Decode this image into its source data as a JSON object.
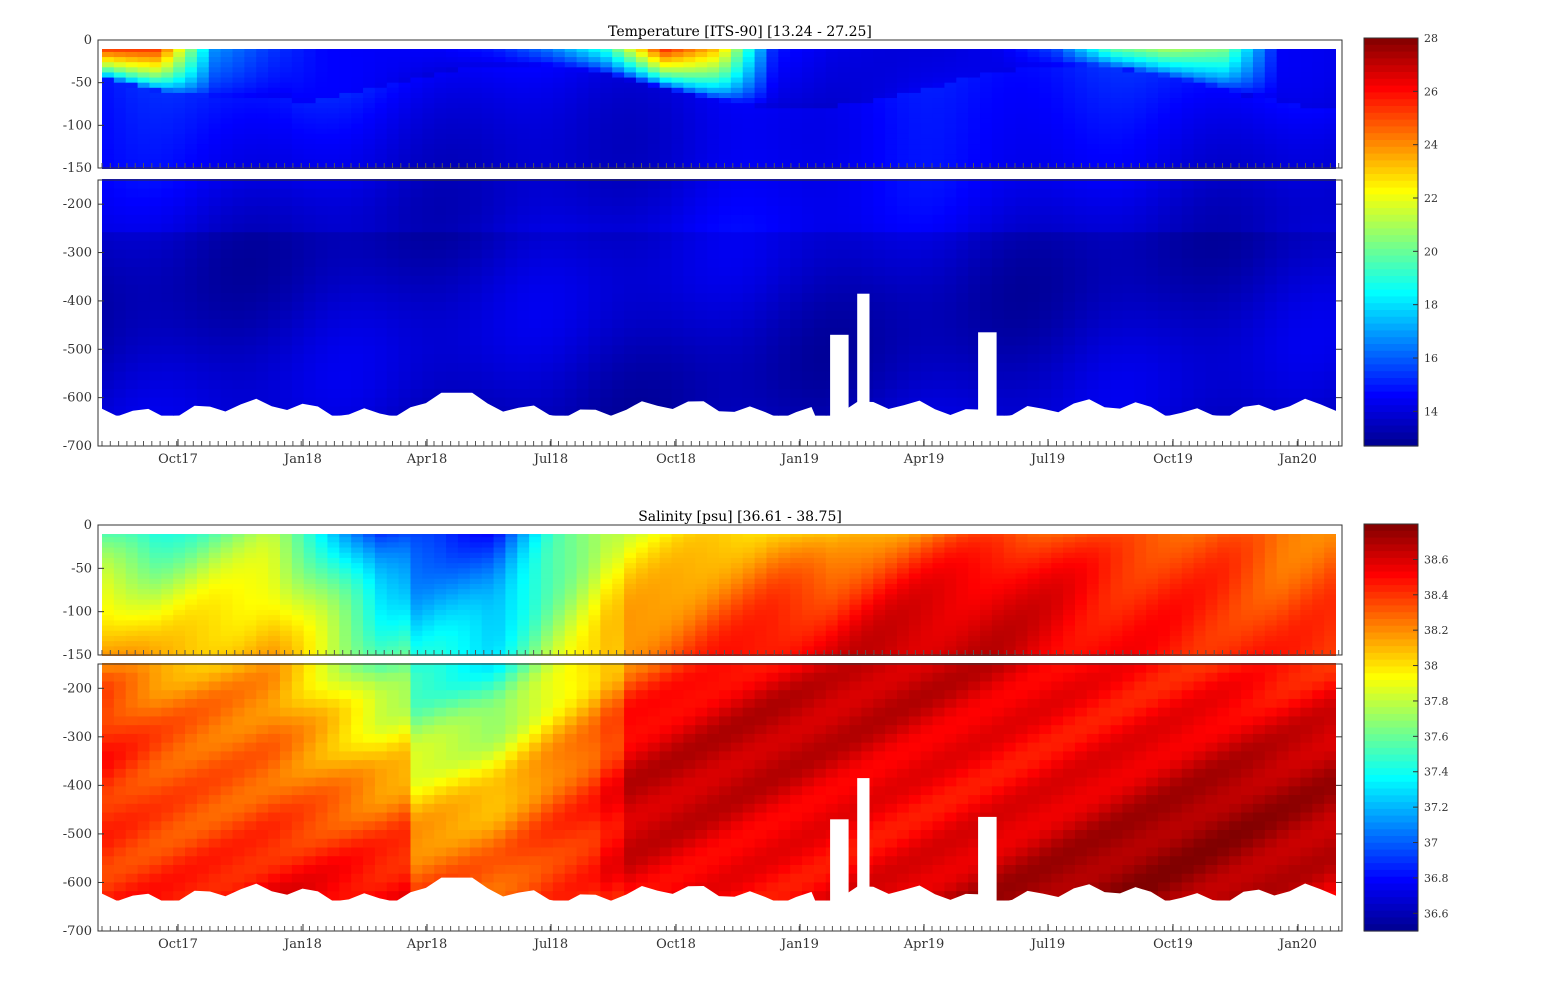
{
  "colors": {
    "jet": [
      "#00008f",
      "#0000ff",
      "#0080ff",
      "#00ffff",
      "#80ff80",
      "#ffff00",
      "#ff8000",
      "#ff0000",
      "#800000"
    ],
    "axis": "#333333",
    "contour": "#9a9a9a"
  },
  "x_tick_labels": [
    "Oct17",
    "Jan18",
    "Apr18",
    "Jul18",
    "Oct18",
    "Jan19",
    "Apr19",
    "Jul19",
    "Oct19",
    "Jan20"
  ],
  "chart_data": [
    {
      "type": "heatmap",
      "title": "Temperature [ITS-90]   [13.24 - 27.25]",
      "xlabel": "",
      "ylabel": "",
      "x": [
        "Oct17",
        "Jan18",
        "Apr18",
        "Jul18",
        "Oct18",
        "Jan19",
        "Apr19",
        "Jul19",
        "Oct19",
        "Jan20"
      ],
      "ylim": [
        -700,
        0
      ],
      "upper_panel": {
        "ylim": [
          -150,
          0
        ],
        "y_tick_labels": [
          "0",
          "-50",
          "-100",
          "-150"
        ]
      },
      "lower_panel": {
        "ylim": [
          -700,
          -150
        ],
        "y_tick_labels": [
          "-200",
          "-300",
          "-400",
          "-500",
          "-600",
          "-700"
        ]
      },
      "value_range": [
        13.24,
        27.25
      ],
      "colorbar": {
        "min": 12.7,
        "max": 28,
        "tick_labels": [
          "28",
          "26",
          "24",
          "22",
          "20",
          "18",
          "16",
          "14"
        ]
      },
      "surface_values": [
        27,
        26.5,
        17,
        15.5,
        14.6,
        14.5,
        14.6,
        15.2,
        17,
        20,
        27,
        24,
        15,
        14.3,
        14.0,
        14.0,
        14.4,
        16,
        21,
        22,
        21,
        14.5,
        14.3
      ],
      "summary": {
        "surface_layer_max": 27.25,
        "deep_layer_typical": [
          13.5,
          14.5
        ]
      },
      "colormap": "jet"
    },
    {
      "type": "heatmap",
      "title": "Salinity [psu]   [36.61 - 38.75]",
      "xlabel": "",
      "ylabel": "",
      "x": [
        "Oct17",
        "Jan18",
        "Apr18",
        "Jul18",
        "Oct18",
        "Jan19",
        "Apr19",
        "Jul19",
        "Oct19",
        "Jan20"
      ],
      "ylim": [
        -700,
        0
      ],
      "upper_panel": {
        "ylim": [
          -150,
          0
        ],
        "y_tick_labels": [
          "0",
          "-50",
          "-100",
          "-150"
        ]
      },
      "lower_panel": {
        "ylim": [
          -700,
          -150
        ],
        "y_tick_labels": [
          "-200",
          "-300",
          "-400",
          "-500",
          "-600",
          "-700"
        ]
      },
      "value_range": [
        36.61,
        38.75
      ],
      "colorbar": {
        "min": 36.5,
        "max": 38.8,
        "tick_labels": [
          "38.6",
          "38.4",
          "38.2",
          "38",
          "37.8",
          "37.6",
          "37.4",
          "37.2",
          "37",
          "36.8",
          "36.6"
        ]
      },
      "surface_values": [
        37.45,
        37.35,
        37.55,
        37.7,
        37.3,
        36.8,
        36.85,
        36.8,
        37.4,
        37.8,
        37.9,
        38.0,
        38.05,
        37.95,
        38.1,
        38.2,
        38.3,
        38.3,
        38.25,
        38.3,
        38.3,
        38.2,
        38.25
      ],
      "summary": {
        "deep_layer_typical": [
          38.5,
          38.7
        ],
        "fresh_intrusion_period": [
          "Mar18",
          "Jul18"
        ]
      },
      "colormap": "jet"
    }
  ]
}
